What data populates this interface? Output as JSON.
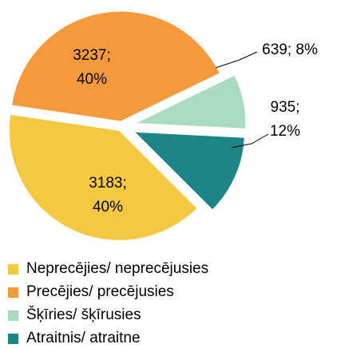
{
  "chart_data": {
    "type": "pie",
    "categories": [
      "Neprecējies/ neprecējusies",
      "Precējies/ precējusies",
      "Šķīries/ šķīrusies",
      "Atraitnis/ atraitne"
    ],
    "values": [
      3183,
      3237,
      639,
      935
    ],
    "value_labels": [
      "3183; 40%",
      "3237; 40%",
      "639; 8%",
      "935; 12%"
    ],
    "colors": [
      "#f5c842",
      "#f59a3c",
      "#a9dbbf",
      "#1e8585"
    ]
  }
}
